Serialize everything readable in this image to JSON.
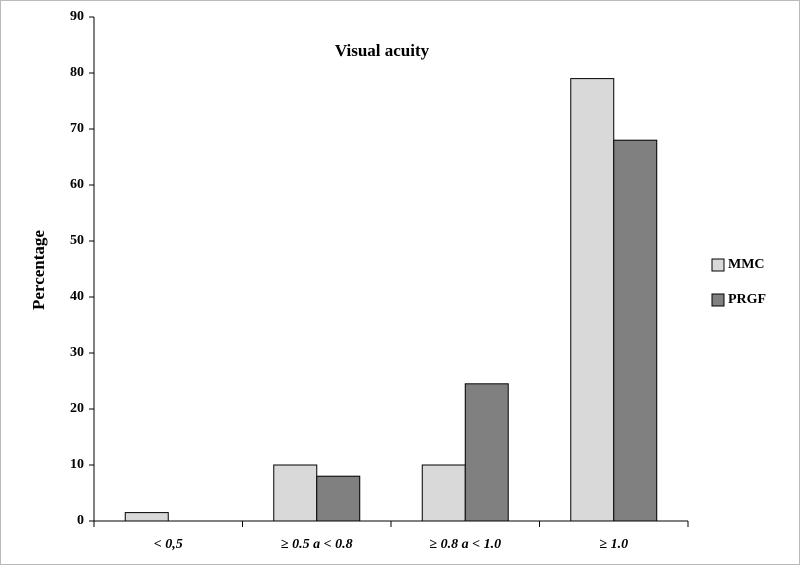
{
  "chart_data": {
    "type": "bar",
    "title": "Visual acuity",
    "y_label": "Percentage",
    "categories": [
      "< 0,5",
      "≥ 0.5 a < 0.8",
      "≥ 0.8 a < 1.0",
      "≥ 1.0"
    ],
    "series": [
      {
        "name": "MMC",
        "color": "#d9d9d9",
        "values": [
          1.5,
          10,
          10,
          79
        ]
      },
      {
        "name": "PRGF",
        "color": "#808080",
        "values": [
          0,
          8,
          24.5,
          68
        ]
      }
    ],
    "ylim": [
      0,
      90
    ],
    "yticks": [
      0,
      10,
      20,
      30,
      40,
      50,
      60,
      70,
      80,
      90
    ],
    "grid": false,
    "legend": "right"
  }
}
